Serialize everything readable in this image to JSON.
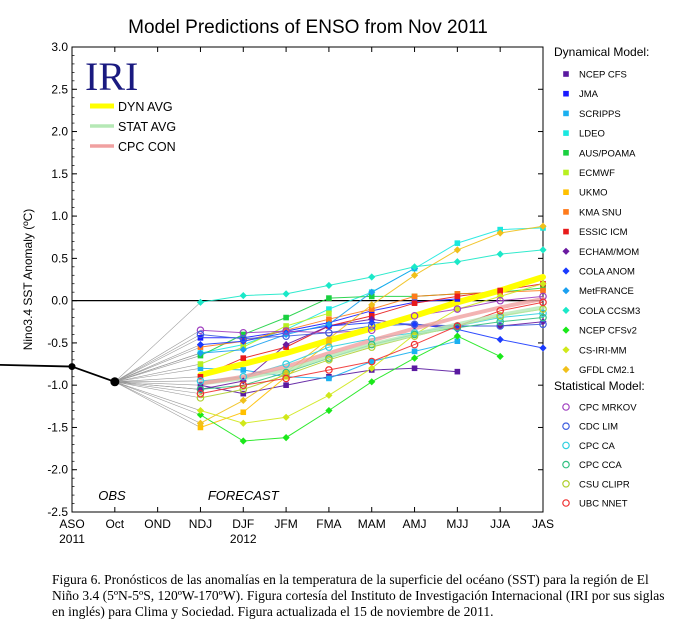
{
  "chart_data": {
    "type": "line",
    "title": "Model Predictions of ENSO from Nov 2011",
    "ylabel": "Nino3.4 SST Anomaly (ºC)",
    "xlabel": "",
    "logo": "IRI",
    "ylim": [
      -2.5,
      3.0
    ],
    "yticks": [
      "3.0",
      "2.5",
      "2.0",
      "1.5",
      "1.0",
      "0.5",
      "0.0",
      "-0.5",
      "-1.0",
      "-1.5",
      "-2.0",
      "-2.5"
    ],
    "categories": [
      "ASO",
      "Oct",
      "OND",
      "NDJ",
      "DJF",
      "JFM",
      "FMA",
      "MAM",
      "AMJ",
      "MJJ",
      "JJA",
      "JAS"
    ],
    "year_labels": [
      {
        "at": "ASO",
        "text": "2011"
      },
      {
        "at": "DJF",
        "text": "2012"
      }
    ],
    "region_labels": {
      "obs": "OBS",
      "forecast": "FORECAST"
    },
    "observed": {
      "x": [
        "ASO",
        "Oct"
      ],
      "values": [
        -0.78,
        -0.96
      ]
    },
    "averages": [
      {
        "name": "DYN AVG",
        "color": "#ffff00",
        "values": [
          -0.88,
          -0.75,
          -0.62,
          -0.47,
          -0.33,
          -0.18,
          -0.02,
          0.12,
          0.28
        ]
      },
      {
        "name": "STAT AVG",
        "color": "#b5e8b5",
        "values": [
          -0.98,
          -0.92,
          -0.82,
          -0.66,
          -0.52,
          -0.4,
          -0.28,
          -0.17,
          -0.08
        ]
      },
      {
        "name": "CPC CON",
        "color": "#f0a0a0",
        "values": [
          -0.98,
          -0.9,
          -0.78,
          -0.62,
          -0.47,
          -0.33,
          -0.2,
          -0.08,
          0.02
        ]
      }
    ],
    "legend_dynamical_title": "Dynamical Model:",
    "legend_statistical_title": "Statistical Model:",
    "dynamical": [
      {
        "name": "NCEP CFS",
        "color": "#5a1aa0",
        "values": [
          -1.0,
          -1.1,
          -1.0,
          -0.9,
          -0.82,
          -0.8,
          -0.84,
          null,
          null
        ]
      },
      {
        "name": "JMA",
        "color": "#1a1aff",
        "values": [
          -0.44,
          -0.44,
          -0.36,
          -0.26,
          -0.12,
          -0.02,
          0.02,
          null,
          null
        ]
      },
      {
        "name": "SCRIPPS",
        "color": "#1ab0f0",
        "values": [
          -0.8,
          -0.82,
          -0.9,
          -0.92,
          -0.72,
          -0.6,
          -0.48,
          null,
          null
        ]
      },
      {
        "name": "LDEO",
        "color": "#1ae8e0",
        "values": [
          -0.62,
          -0.52,
          -0.34,
          -0.1,
          0.1,
          0.38,
          0.68,
          0.84,
          0.86
        ]
      },
      {
        "name": "AUS/POAMA",
        "color": "#1ad040",
        "values": [
          -0.65,
          -0.4,
          -0.2,
          0.03,
          0.05,
          0.05,
          0.08,
          0.1,
          0.15
        ]
      },
      {
        "name": "ECMWF",
        "color": "#b8f020",
        "values": [
          -0.75,
          -0.55,
          -0.3,
          -0.15,
          null,
          null,
          null,
          null,
          null
        ]
      },
      {
        "name": "UKMO",
        "color": "#ffc000",
        "values": [
          -1.5,
          -1.32,
          -0.9,
          -0.5,
          null,
          null,
          null,
          null,
          null
        ]
      },
      {
        "name": "KMA SNU",
        "color": "#ff7a1a",
        "values": [
          -0.55,
          -0.48,
          -0.35,
          -0.22,
          -0.1,
          0.05,
          0.08,
          0.1,
          0.12
        ]
      },
      {
        "name": "ESSIC ICM",
        "color": "#e81a1a",
        "values": [
          -0.9,
          -0.68,
          -0.55,
          -0.3,
          -0.18,
          -0.03,
          0.05,
          0.12,
          0.2
        ]
      },
      {
        "name": "ECHAM/MOM",
        "color": "#6a1aa0",
        "values": [
          -1.05,
          -0.95,
          -0.52,
          -0.3,
          -0.22,
          -0.3,
          -0.3,
          -0.3,
          -0.25
        ]
      },
      {
        "name": "COLA ANOM",
        "color": "#1a3aff",
        "values": [
          -0.52,
          -0.48,
          -0.38,
          -0.3,
          -0.26,
          -0.28,
          -0.34,
          -0.46,
          -0.56
        ]
      },
      {
        "name": "MetFRANCE",
        "color": "#1aa0f0",
        "values": [
          -0.62,
          -0.58,
          -0.4,
          -0.28,
          0.1,
          0.38,
          null,
          null,
          null
        ]
      },
      {
        "name": "COLA CCSM3",
        "color": "#1ae8c8",
        "values": [
          -0.02,
          0.06,
          0.08,
          0.18,
          0.28,
          0.4,
          0.46,
          0.55,
          0.6
        ]
      },
      {
        "name": "NCEP CFSv2",
        "color": "#1ae81a",
        "values": [
          -1.35,
          -1.66,
          -1.62,
          -1.3,
          -0.96,
          -0.68,
          -0.42,
          -0.66,
          null
        ]
      },
      {
        "name": "CS-IRI-MM",
        "color": "#d0e81a",
        "values": [
          -1.3,
          -1.45,
          -1.38,
          -1.12,
          -0.8,
          -0.4,
          -0.1,
          0.05,
          0.2
        ]
      },
      {
        "name": "GFDL CM2.1",
        "color": "#f0c01a",
        "values": [
          -1.45,
          -1.18,
          -0.85,
          -0.45,
          -0.05,
          0.3,
          0.6,
          0.8,
          0.88
        ]
      }
    ],
    "statistical": [
      {
        "name": "CPC MRKOV",
        "color": "#a040c0",
        "values": [
          -0.35,
          -0.38,
          -0.36,
          -0.38,
          -0.35,
          -0.18,
          -0.1,
          0.0,
          0.05
        ]
      },
      {
        "name": "CDC LIM",
        "color": "#4060e0",
        "values": [
          -0.4,
          -0.45,
          -0.42,
          -0.38,
          -0.3,
          -0.28,
          -0.3,
          -0.3,
          -0.28
        ]
      },
      {
        "name": "CPC CA",
        "color": "#30d0e0",
        "values": [
          -0.95,
          -0.9,
          -0.75,
          -0.55,
          -0.45,
          -0.38,
          -0.3,
          -0.2,
          -0.15
        ]
      },
      {
        "name": "CPC CCA",
        "color": "#30c080",
        "values": [
          -1.05,
          -1.0,
          -0.85,
          -0.68,
          -0.52,
          -0.4,
          -0.32,
          -0.25,
          -0.2
        ]
      },
      {
        "name": "CSU CLIPR",
        "color": "#b0d030",
        "values": [
          -1.15,
          -1.05,
          -0.88,
          -0.7,
          -0.55,
          -0.42,
          -0.3,
          -0.18,
          -0.1
        ]
      },
      {
        "name": "UBC NNET",
        "color": "#f03030",
        "values": [
          -1.1,
          -1.0,
          -0.92,
          -0.82,
          -0.72,
          -0.52,
          -0.3,
          -0.12,
          -0.02
        ]
      }
    ]
  },
  "caption": "Figura 6. Pronósticos de las anomalías en la temperatura de la superficie del océano (SST) para la región de El Niño 3.4 (5ºN-5ºS, 120ºW-170ºW). Figura cortesía del Instituto de Investigación Internacional (IRI por sus siglas en inglés) para Clima y Sociedad. Figura actualizada el 15 de noviembre de 2011."
}
